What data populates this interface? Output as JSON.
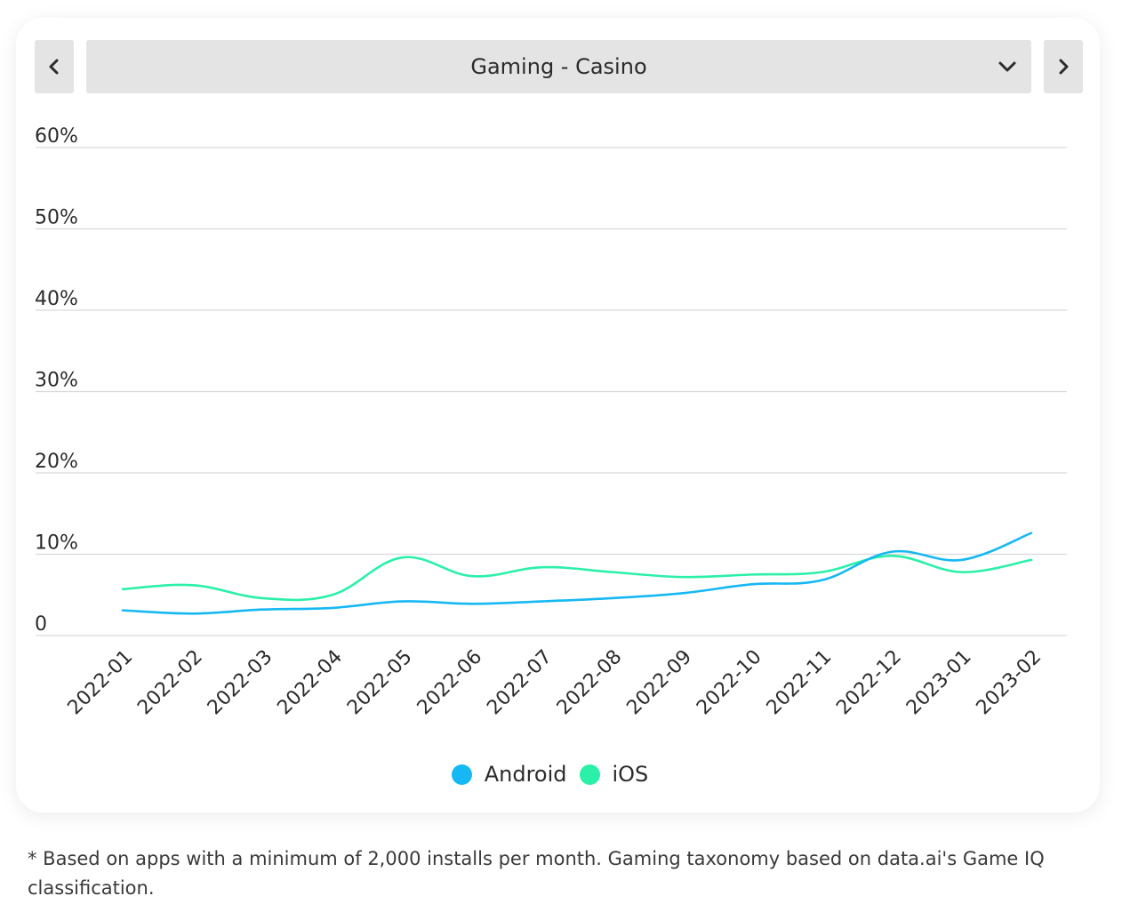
{
  "selector": {
    "label": "Gaming - Casino",
    "prev_icon": "chevron-left-icon",
    "next_icon": "chevron-right-icon",
    "dropdown_icon": "chevron-down-icon"
  },
  "chart_data": {
    "type": "line",
    "categories": [
      "2022-01",
      "2022-02",
      "2022-03",
      "2022-04",
      "2022-05",
      "2022-06",
      "2022-07",
      "2022-08",
      "2022-09",
      "2022-10",
      "2022-11",
      "2022-12",
      "2023-01",
      "2023-02"
    ],
    "series": [
      {
        "name": "Android",
        "color": "#16b8f3",
        "values": [
          3.1,
          2.7,
          3.2,
          3.4,
          4.2,
          3.9,
          4.2,
          4.6,
          5.2,
          6.3,
          6.8,
          10.3,
          9.3,
          12.6
        ]
      },
      {
        "name": "iOS",
        "color": "#2af0a8",
        "values": [
          5.7,
          6.2,
          4.6,
          5.0,
          9.6,
          7.3,
          8.4,
          7.8,
          7.2,
          7.5,
          7.8,
          9.8,
          7.8,
          9.3
        ]
      }
    ],
    "ylim": [
      0,
      60
    ],
    "yticks": [
      0,
      10,
      20,
      30,
      40,
      50,
      60
    ],
    "ytick_labels": [
      "0",
      "10%",
      "20%",
      "30%",
      "40%",
      "50%",
      "60%"
    ],
    "grid": true,
    "legend_position": "bottom-center"
  },
  "footnote": "* Based on apps with a minimum of 2,000 installs per month. Gaming taxonomy based on data.ai's Game IQ classification."
}
